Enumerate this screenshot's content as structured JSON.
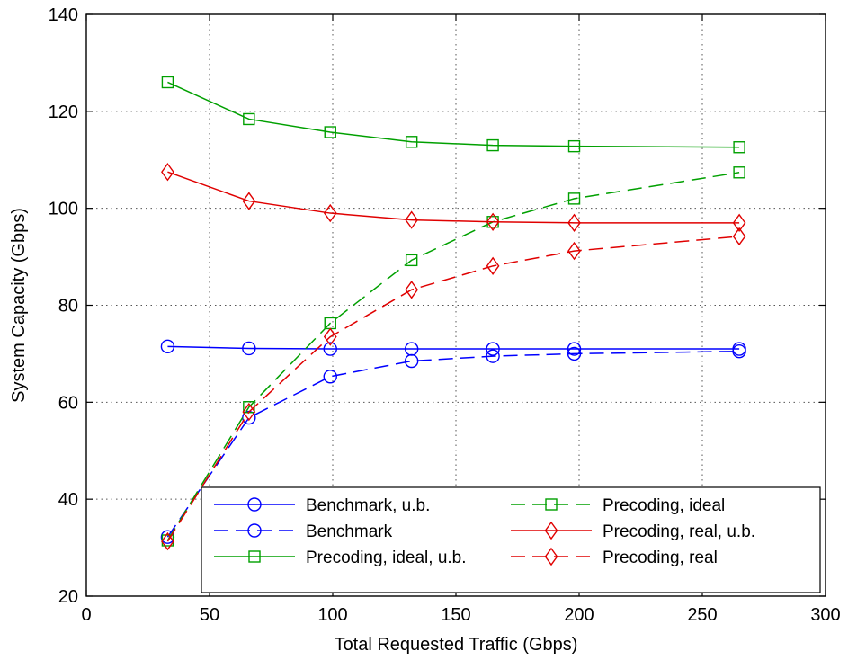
{
  "chart_data": {
    "type": "line",
    "title": "",
    "xlabel": "Total Requested Traffic (Gbps)",
    "ylabel": "System Capacity (Gbps)",
    "xlim": [
      0,
      300
    ],
    "ylim": [
      20,
      140
    ],
    "xticks": [
      0,
      50,
      100,
      150,
      200,
      250,
      300
    ],
    "yticks": [
      20,
      40,
      60,
      80,
      100,
      120,
      140
    ],
    "grid": true,
    "legend": "bottom-right, two columns",
    "x": [
      33,
      66,
      99,
      132,
      165,
      198,
      265
    ],
    "series": [
      {
        "name": "Benchmark, u.b.",
        "color": "#0000ff",
        "linestyle": "solid",
        "marker": "circle",
        "values": [
          71.5,
          71.1,
          71.0,
          71.0,
          71.0,
          71.0,
          71.0
        ]
      },
      {
        "name": "Benchmark",
        "color": "#0000ff",
        "linestyle": "dashed",
        "marker": "circle",
        "values": [
          32.2,
          56.8,
          65.3,
          68.5,
          69.5,
          70.0,
          70.5
        ]
      },
      {
        "name": "Precoding, ideal, u.b.",
        "color": "#00a000",
        "linestyle": "solid",
        "marker": "square",
        "values": [
          126.0,
          118.4,
          115.7,
          113.7,
          113.0,
          112.8,
          112.6
        ]
      },
      {
        "name": "Precoding, ideal",
        "color": "#00a000",
        "linestyle": "dashed",
        "marker": "square",
        "values": [
          31.5,
          59.0,
          76.3,
          89.3,
          97.2,
          102.0,
          107.4
        ]
      },
      {
        "name": "Precoding, real, u.b.",
        "color": "#e00000",
        "linestyle": "solid",
        "marker": "diamond",
        "values": [
          107.5,
          101.5,
          99.0,
          97.6,
          97.2,
          97.0,
          97.0
        ]
      },
      {
        "name": "Precoding, real",
        "color": "#e00000",
        "linestyle": "dashed",
        "marker": "diamond",
        "values": [
          31.3,
          58.0,
          73.5,
          83.2,
          88.1,
          91.2,
          94.2
        ]
      }
    ]
  }
}
